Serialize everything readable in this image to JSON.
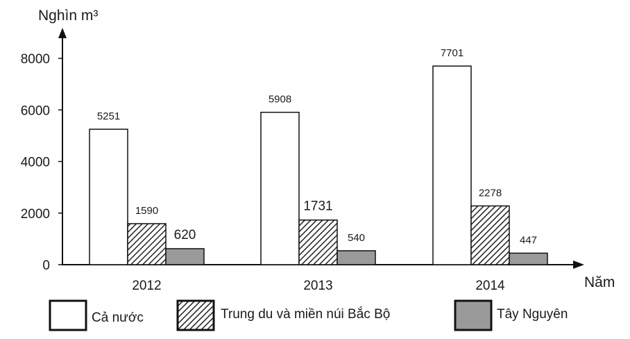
{
  "chart_data": {
    "type": "bar",
    "ylabel": "Nghìn m³",
    "xlabel": "Năm",
    "categories": [
      "2012",
      "2013",
      "2014"
    ],
    "y_ticks": [
      "0",
      "2000",
      "4000",
      "6000",
      "8000"
    ],
    "ylim": [
      0,
      8000
    ],
    "grid": false,
    "legend_position": "bottom",
    "series": [
      {
        "name": "Cả nước",
        "values": [
          5251,
          5908,
          7701
        ],
        "labels": [
          "5251",
          "5908",
          "7701"
        ],
        "fill": "#ffffff",
        "pattern": "none"
      },
      {
        "name": "Trung du và miền núi Bắc Bộ",
        "values": [
          1590,
          1731,
          2278
        ],
        "labels": [
          "1590",
          "1731",
          "2278"
        ],
        "fill": "#ffffff",
        "pattern": "hatch"
      },
      {
        "name": "Tây Nguyên",
        "values": [
          620,
          540,
          447
        ],
        "labels": [
          "620",
          "540",
          "447"
        ],
        "fill": "#9a9a9a",
        "pattern": "none"
      }
    ]
  }
}
